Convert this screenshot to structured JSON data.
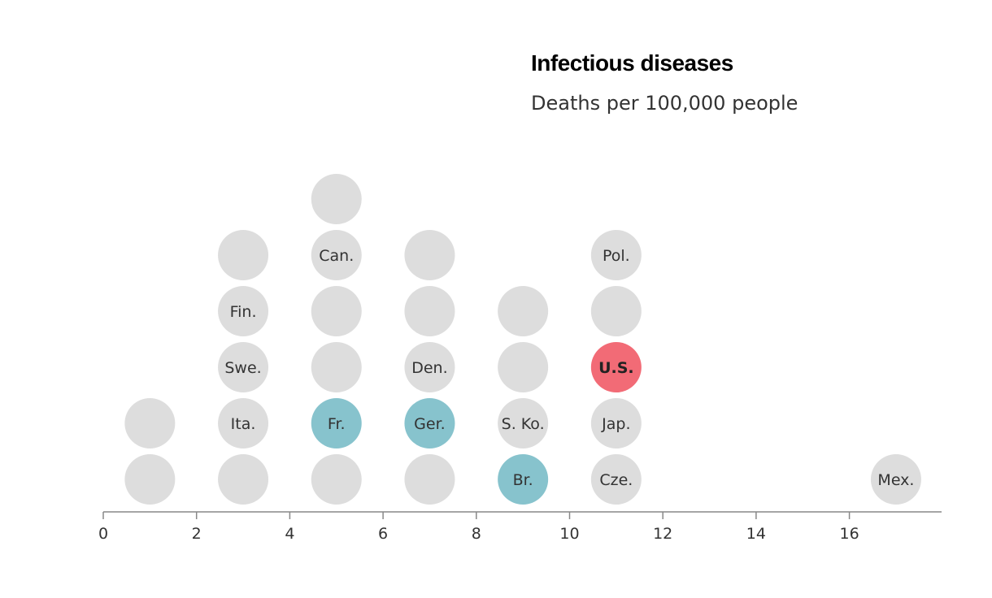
{
  "chart_data": {
    "type": "scatter",
    "title": "Infectious diseases",
    "subtitle": "Deaths per 100,000 people",
    "xlim": [
      0,
      18
    ],
    "x_ticks": [
      0,
      2,
      4,
      6,
      8,
      10,
      12,
      14,
      16
    ],
    "grid": false,
    "colors": {
      "default": "#dddddd",
      "highlight_blue": "#87c3cd",
      "highlight_red": "#f26b76"
    },
    "points": [
      {
        "x": 1,
        "stack": 0,
        "label": "",
        "color": "default"
      },
      {
        "x": 1,
        "stack": 1,
        "label": "",
        "color": "default"
      },
      {
        "x": 3,
        "stack": 0,
        "label": "",
        "color": "default"
      },
      {
        "x": 3,
        "stack": 1,
        "label": "Ita.",
        "color": "default"
      },
      {
        "x": 3,
        "stack": 2,
        "label": "Swe.",
        "color": "default"
      },
      {
        "x": 3,
        "stack": 3,
        "label": "Fin.",
        "color": "default"
      },
      {
        "x": 3,
        "stack": 4,
        "label": "",
        "color": "default"
      },
      {
        "x": 5,
        "stack": 0,
        "label": "",
        "color": "default"
      },
      {
        "x": 5,
        "stack": 1,
        "label": "Fr.",
        "color": "highlight_blue"
      },
      {
        "x": 5,
        "stack": 2,
        "label": "",
        "color": "default"
      },
      {
        "x": 5,
        "stack": 3,
        "label": "",
        "color": "default"
      },
      {
        "x": 5,
        "stack": 4,
        "label": "Can.",
        "color": "default"
      },
      {
        "x": 5,
        "stack": 5,
        "label": "",
        "color": "default"
      },
      {
        "x": 7,
        "stack": 0,
        "label": "",
        "color": "default"
      },
      {
        "x": 7,
        "stack": 1,
        "label": "Ger.",
        "color": "highlight_blue"
      },
      {
        "x": 7,
        "stack": 2,
        "label": "Den.",
        "color": "default"
      },
      {
        "x": 7,
        "stack": 3,
        "label": "",
        "color": "default"
      },
      {
        "x": 7,
        "stack": 4,
        "label": "",
        "color": "default"
      },
      {
        "x": 9,
        "stack": 0,
        "label": "Br.",
        "color": "highlight_blue"
      },
      {
        "x": 9,
        "stack": 1,
        "label": "S. Ko.",
        "color": "default"
      },
      {
        "x": 9,
        "stack": 2,
        "label": "",
        "color": "default"
      },
      {
        "x": 9,
        "stack": 3,
        "label": "",
        "color": "default"
      },
      {
        "x": 11,
        "stack": 0,
        "label": "Cze.",
        "color": "default"
      },
      {
        "x": 11,
        "stack": 1,
        "label": "Jap.",
        "color": "default"
      },
      {
        "x": 11,
        "stack": 2,
        "label": "U.S.",
        "color": "highlight_red",
        "bold": true
      },
      {
        "x": 11,
        "stack": 3,
        "label": "",
        "color": "default"
      },
      {
        "x": 11,
        "stack": 4,
        "label": "Pol.",
        "color": "default"
      },
      {
        "x": 17,
        "stack": 0,
        "label": "Mex.",
        "color": "default"
      }
    ]
  }
}
